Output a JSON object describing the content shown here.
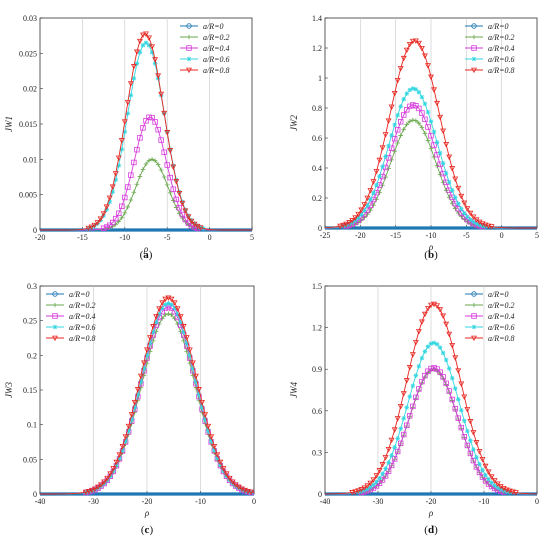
{
  "chart_data": [
    {
      "type": "line",
      "panel_label": "a",
      "xlabel": "ρ",
      "ylabel": "JW1",
      "xlim": [
        -20,
        5
      ],
      "ylim": [
        0,
        0.03
      ],
      "xticks": [
        "-20",
        "-15",
        "-10",
        "-5",
        "0",
        "5"
      ],
      "yticks": [
        "0",
        "0.005",
        "0.01",
        "0.015",
        "0.02",
        "0.025",
        "0.03"
      ],
      "grid": true,
      "legend": "top-right",
      "series": [
        {
          "name": "a/R=0",
          "color": "#1f77b4",
          "peak_x": -7.5,
          "peak_y": 0.0,
          "width": 2.2
        },
        {
          "name": "a/R=0.2",
          "color": "#6aa84f",
          "peak_x": -6.8,
          "peak_y": 0.01,
          "width": 1.9
        },
        {
          "name": "a/R=0.4",
          "color": "#d63adb",
          "peak_x": -7.0,
          "peak_y": 0.016,
          "width": 1.9
        },
        {
          "name": "a/R=0.6",
          "color": "#33d6e0",
          "peak_x": -7.5,
          "peak_y": 0.0265,
          "width": 2.2
        },
        {
          "name": "a/R=0.8",
          "color": "#e8251f",
          "peak_x": -7.6,
          "peak_y": 0.0278,
          "width": 2.2
        }
      ]
    },
    {
      "type": "line",
      "panel_label": "b",
      "xlabel": "ρ",
      "ylabel": "JW2",
      "xlim": [
        -25,
        5
      ],
      "ylim": [
        0,
        1.4
      ],
      "xticks": [
        "-25",
        "-20",
        "-15",
        "-10",
        "-5",
        "0",
        "5"
      ],
      "yticks": [
        "0",
        "0.2",
        "0.4",
        "0.6",
        "0.8",
        "1",
        "1.2",
        "1.4"
      ],
      "grid": true,
      "legend": "top-right",
      "series": [
        {
          "name": "a/R=0",
          "color": "#1f77b4",
          "peak_x": -12.5,
          "peak_y": 0.0,
          "width": 3.5
        },
        {
          "name": "a/R=0.2",
          "color": "#6aa84f",
          "peak_x": -12.5,
          "peak_y": 0.72,
          "width": 3.2
        },
        {
          "name": "a/R=0.4",
          "color": "#d63adb",
          "peak_x": -12.5,
          "peak_y": 0.82,
          "width": 3.3
        },
        {
          "name": "a/R=0.6",
          "color": "#33d6e0",
          "peak_x": -12.5,
          "peak_y": 0.93,
          "width": 3.4
        },
        {
          "name": "a/R=0.8",
          "color": "#e8251f",
          "peak_x": -12.3,
          "peak_y": 1.25,
          "width": 3.5
        }
      ]
    },
    {
      "type": "line",
      "panel_label": "c",
      "xlabel": "ρ",
      "ylabel": "JW3",
      "xlim": [
        -40,
        0
      ],
      "ylim": [
        0,
        0.3
      ],
      "xticks": [
        "-40",
        "-30",
        "-20",
        "-10",
        "0"
      ],
      "yticks": [
        "0",
        "0.05",
        "0.1",
        "0.15",
        "0.2",
        "0.25",
        "0.3"
      ],
      "grid": true,
      "legend": "top-left",
      "series": [
        {
          "name": "a/R=0",
          "color": "#1f77b4",
          "peak_x": -16.0,
          "peak_y": 0.0,
          "width": 5.0
        },
        {
          "name": "a/R=0.2",
          "color": "#6aa84f",
          "peak_x": -16.0,
          "peak_y": 0.26,
          "width": 5.0
        },
        {
          "name": "a/R=0.4",
          "color": "#d63adb",
          "peak_x": -16.0,
          "peak_y": 0.27,
          "width": 5.0
        },
        {
          "name": "a/R=0.6",
          "color": "#33d6e0",
          "peak_x": -16.0,
          "peak_y": 0.275,
          "width": 5.0
        },
        {
          "name": "a/R=0.8",
          "color": "#e8251f",
          "peak_x": -16.0,
          "peak_y": 0.283,
          "width": 5.1
        }
      ]
    },
    {
      "type": "line",
      "panel_label": "d",
      "xlabel": "ρ",
      "ylabel": "JW4",
      "xlim": [
        -40,
        0
      ],
      "ylim": [
        0,
        1.5
      ],
      "xticks": [
        "-40",
        "-30",
        "-20",
        "-10",
        "0"
      ],
      "yticks": [
        "0",
        "0.3",
        "0.6",
        "0.9",
        "1.2",
        "1.5"
      ],
      "grid": true,
      "legend": "top-right",
      "series": [
        {
          "name": "a/R=0",
          "color": "#1f77b4",
          "peak_x": -19.5,
          "peak_y": 0.0,
          "width": 4.5
        },
        {
          "name": "a/R=0.2",
          "color": "#6aa84f",
          "peak_x": -19.5,
          "peak_y": 0.9,
          "width": 4.6
        },
        {
          "name": "a/R=0.4",
          "color": "#d63adb",
          "peak_x": -19.5,
          "peak_y": 0.91,
          "width": 4.6
        },
        {
          "name": "a/R=0.6",
          "color": "#33d6e0",
          "peak_x": -19.5,
          "peak_y": 1.09,
          "width": 4.8
        },
        {
          "name": "a/R=0.8",
          "color": "#e8251f",
          "peak_x": -19.5,
          "peak_y": 1.37,
          "width": 5.0
        }
      ]
    }
  ]
}
